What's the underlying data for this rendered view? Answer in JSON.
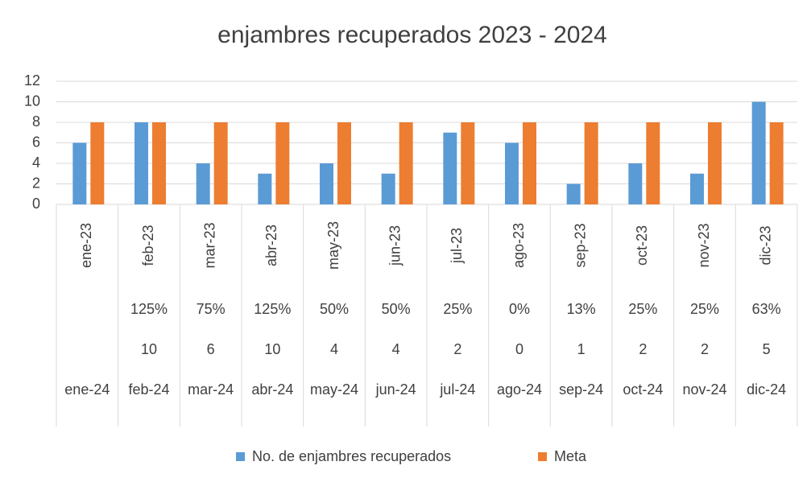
{
  "chart_data": {
    "type": "bar",
    "title": "enjambres recuperados 2023 - 2024",
    "categories": [
      "ene-23",
      "feb-23",
      "mar-23",
      "abr-23",
      "may-23",
      "jun-23",
      "jul-23",
      "ago-23",
      "sep-23",
      "oct-23",
      "nov-23",
      "dic-23"
    ],
    "series": [
      {
        "name": "No. de enjambres recuperados",
        "color": "#5b9bd5",
        "values": [
          6,
          8,
          4,
          3,
          4,
          3,
          7,
          6,
          2,
          4,
          3,
          10
        ]
      },
      {
        "name": "Meta",
        "color": "#ed7d31",
        "values": [
          8,
          8,
          8,
          8,
          8,
          8,
          8,
          8,
          8,
          8,
          8,
          8
        ]
      }
    ],
    "ylim": [
      0,
      12
    ],
    "yticks": [
      0,
      2,
      4,
      6,
      8,
      10,
      12
    ],
    "grid": true,
    "legend": "bottom",
    "table_rows": [
      [
        null,
        "125%",
        "75%",
        "125%",
        "50%",
        "50%",
        "25%",
        "0%",
        "13%",
        "25%",
        "25%",
        "63%"
      ],
      [
        null,
        10,
        6,
        10,
        4,
        4,
        2,
        0,
        1,
        2,
        2,
        5
      ],
      [
        "ene-24",
        "feb-24",
        "mar-24",
        "abr-24",
        "may-24",
        "jun-24",
        "jul-24",
        "ago-24",
        "sep-24",
        "oct-24",
        "nov-24",
        "dic-24"
      ]
    ]
  }
}
